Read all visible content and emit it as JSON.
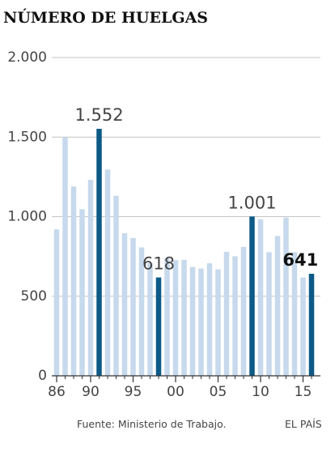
{
  "chart_data": {
    "type": "bar",
    "title": "NÚMERO DE HUELGAS",
    "x": [
      1986,
      1987,
      1988,
      1989,
      1990,
      1991,
      1992,
      1993,
      1994,
      1995,
      1996,
      1997,
      1998,
      1999,
      2000,
      2001,
      2002,
      2003,
      2004,
      2005,
      2006,
      2007,
      2008,
      2009,
      2010,
      2011,
      2012,
      2013,
      2014,
      2015,
      2016
    ],
    "values": [
      920,
      1497,
      1190,
      1047,
      1231,
      1552,
      1296,
      1131,
      896,
      866,
      807,
      709,
      618,
      739,
      727,
      729,
      684,
      674,
      707,
      669,
      779,
      751,
      810,
      1001,
      984,
      777,
      878,
      994,
      777,
      618,
      641
    ],
    "highlighted_years": [
      1991,
      1998,
      2009,
      2016
    ],
    "annotations": [
      {
        "year": 1991,
        "label": "1.552"
      },
      {
        "year": 1998,
        "label": "618"
      },
      {
        "year": 2009,
        "label": "1.001"
      },
      {
        "year": 2016,
        "label": "641"
      }
    ],
    "y_ticks": [
      {
        "value": 0,
        "label": "0"
      },
      {
        "value": 500,
        "label": "500"
      },
      {
        "value": 1000,
        "label": "1.000"
      },
      {
        "value": 1500,
        "label": "1.500"
      },
      {
        "value": 2000,
        "label": "2.000"
      }
    ],
    "x_ticks": [
      {
        "year": 1986,
        "label": "86"
      },
      {
        "year": 1990,
        "label": "90"
      },
      {
        "year": 1995,
        "label": "95"
      },
      {
        "year": 2000,
        "label": "00"
      },
      {
        "year": 2005,
        "label": "05"
      },
      {
        "year": 2010,
        "label": "10"
      },
      {
        "year": 2015,
        "label": "15"
      }
    ],
    "ylim": [
      0,
      2000
    ],
    "grid": true,
    "source": "Fuente: Ministerio de Trabajo.",
    "publisher": "EL PAÍS",
    "colors": {
      "bar": "#c7d9ec",
      "highlight": "#0d5a86",
      "grid": "#c4c4c4",
      "axis": "#333333",
      "text": "#444444",
      "title": "#111111"
    }
  }
}
